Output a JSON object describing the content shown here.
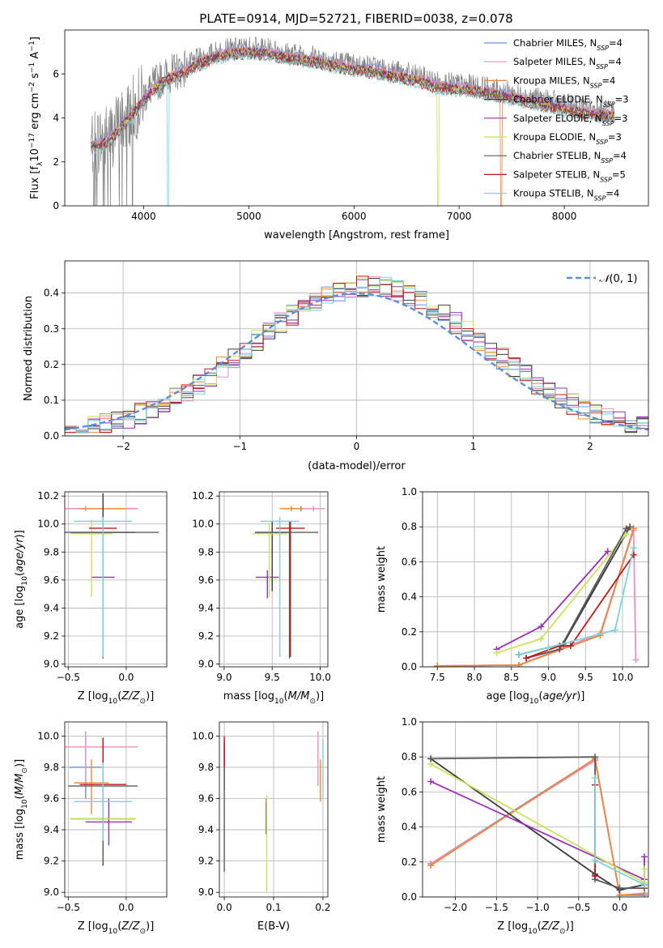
{
  "figure": {
    "title": "PLATE=0914, MJD=52721, FIBERID=0038, z=0.078"
  },
  "colors": {
    "Chabrier MILES": "#6b8fd6",
    "Salpeter MILES": "#e88fc4",
    "Kroupa MILES": "#f0863a",
    "Chabrier ELODIE": "#3a3a3a",
    "Salpeter ELODIE": "#9b2fb3",
    "Kroupa ELODIE": "#c8e25a",
    "Chabrier STELIB": "#5a5a5a",
    "Salpeter STELIB": "#c01818",
    "Kroupa STELIB": "#7fd3d8",
    "gauss": "#5b8fd6",
    "data": "#808080"
  },
  "chart_data": [
    {
      "id": "spectrum",
      "type": "line",
      "xlabel": "wavelength [Angstrom, rest frame]",
      "ylabel": "Flux [f_λ10^-17 erg cm^-2 s^-1 A^-1]",
      "xlim": [
        3250,
        8800
      ],
      "ylim": [
        0,
        8
      ],
      "xticks": [
        4000,
        5000,
        6000,
        7000,
        8000
      ],
      "yticks": [
        0,
        2,
        4,
        6
      ],
      "grid": false,
      "legend_position": "upper right",
      "legend": [
        {
          "model": "Chabrier MILES",
          "nssp": "4"
        },
        {
          "model": "Salpeter MILES",
          "nssp": "4"
        },
        {
          "model": "Kroupa MILES",
          "nssp": "4"
        },
        {
          "model": "Chabrier ELODIE",
          "nssp": "3"
        },
        {
          "model": "Salpeter ELODIE",
          "nssp": "3"
        },
        {
          "model": "Kroupa ELODIE",
          "nssp": "3"
        },
        {
          "model": "Chabrier STELIB",
          "nssp": "4"
        },
        {
          "model": "Salpeter STELIB",
          "nssp": "5"
        },
        {
          "model": "Kroupa STELIB",
          "nssp": "4"
        }
      ],
      "continuum": {
        "wavelength": [
          3500,
          3600,
          3700,
          3800,
          3900,
          4000,
          4100,
          4200,
          4300,
          4400,
          4500,
          4600,
          4700,
          4800,
          4900,
          5000,
          5200,
          5400,
          5600,
          5800,
          6000,
          6200,
          6400,
          6600,
          6800,
          7000,
          7200,
          7400,
          7600,
          7800,
          8000,
          8200,
          8400
        ],
        "flux": [
          2.9,
          3.0,
          3.3,
          3.9,
          4.4,
          5.0,
          5.5,
          5.9,
          6.1,
          6.3,
          6.6,
          6.8,
          7.0,
          7.1,
          7.15,
          7.2,
          7.1,
          6.9,
          6.8,
          6.6,
          6.4,
          6.3,
          6.1,
          5.9,
          5.6,
          5.5,
          5.4,
          5.2,
          5.0,
          4.8,
          4.6,
          4.4,
          4.3
        ]
      }
    },
    {
      "id": "residuals",
      "type": "step",
      "xlabel": "(data-model)/error",
      "ylabel": "Normed distribution",
      "xlim": [
        -2.5,
        2.5
      ],
      "ylim": [
        0,
        0.49
      ],
      "xticks": [
        -2,
        -1,
        0,
        1,
        2
      ],
      "yticks": [
        0.0,
        0.1,
        0.2,
        0.3,
        0.4
      ],
      "grid": true,
      "legend": "N(0,1)",
      "legend_position": "upper right",
      "bin_width": 0.1
    },
    {
      "id": "age-vs-Z",
      "type": "errorbar",
      "xlabel": "Z [log10(Z/Z_sun)]",
      "ylabel": "age  [log10(age/yr)]",
      "xlim": [
        -0.53,
        0.35
      ],
      "ylim": [
        8.98,
        10.23
      ],
      "xticks": [
        -0.5,
        0.0
      ],
      "yticks": [
        9.0,
        9.2,
        9.4,
        9.6,
        9.8,
        10.0,
        10.2
      ],
      "grid": true,
      "points": [
        {
          "model": "Chabrier MILES",
          "x": -0.2,
          "xerr": 0.3,
          "y": 10.11,
          "yerr": [
            0.02,
            0.02
          ]
        },
        {
          "model": "Salpeter MILES",
          "x": -0.35,
          "xerr": 0.45,
          "y": 10.11,
          "yerr": [
            0.02,
            0.02
          ]
        },
        {
          "model": "Kroupa MILES",
          "x": -0.2,
          "xerr": 0.2,
          "y": 10.11,
          "yerr": [
            0.02,
            0.02
          ]
        },
        {
          "model": "Chabrier ELODIE",
          "x": -0.2,
          "xerr": 0.28,
          "y": 9.94,
          "yerr": [
            0.88,
            0.28
          ]
        },
        {
          "model": "Salpeter ELODIE",
          "x": -0.2,
          "xerr": 0.1,
          "y": 9.62,
          "yerr": [
            0.08,
            0.08
          ]
        },
        {
          "model": "Kroupa ELODIE",
          "x": -0.3,
          "xerr": 0.18,
          "y": 9.93,
          "yerr": [
            0.45,
            0.1
          ]
        },
        {
          "model": "Chabrier STELIB",
          "x": -0.2,
          "xerr": 0.48,
          "y": 9.94,
          "yerr": [
            0.9,
            0.08
          ]
        },
        {
          "model": "Salpeter STELIB",
          "x": -0.2,
          "xerr": 0.12,
          "y": 9.97,
          "yerr": [
            0.05,
            0.05
          ]
        },
        {
          "model": "Kroupa STELIB",
          "x": -0.2,
          "xerr": 0.25,
          "y": 10.02,
          "yerr": [
            0.97,
            0.03
          ]
        }
      ]
    },
    {
      "id": "age-vs-mass",
      "type": "errorbar",
      "xlabel": "mass [log10(M/M_sun)]",
      "ylabel": "",
      "xlim": [
        8.95,
        10.08
      ],
      "ylim": [
        8.98,
        10.23
      ],
      "xticks": [
        9.0,
        9.5,
        10.0
      ],
      "yticks": [
        9.0,
        9.2,
        9.4,
        9.6,
        9.8,
        10.0,
        10.2
      ],
      "grid": true,
      "points": [
        {
          "model": "Chabrier MILES",
          "x": 9.8,
          "xerr": 0.15,
          "y": 10.11,
          "yerr": [
            0.02,
            0.02
          ]
        },
        {
          "model": "Salpeter MILES",
          "x": 9.93,
          "xerr": 0.12,
          "y": 10.11,
          "yerr": [
            0.02,
            0.02
          ]
        },
        {
          "model": "Kroupa MILES",
          "x": 9.7,
          "xerr": 0.12,
          "y": 10.11,
          "yerr": [
            0.02,
            0.02
          ]
        },
        {
          "model": "Chabrier ELODIE",
          "x": 9.5,
          "xerr": 0.18,
          "y": 9.94,
          "yerr": [
            0.42,
            0.08
          ]
        },
        {
          "model": "Salpeter ELODIE",
          "x": 9.45,
          "xerr": 0.12,
          "y": 9.62,
          "yerr": [
            0.15,
            0.05
          ]
        },
        {
          "model": "Kroupa ELODIE",
          "x": 9.47,
          "xerr": 0.18,
          "y": 9.93,
          "yerr": [
            0.45,
            0.08
          ]
        },
        {
          "model": "Chabrier STELIB",
          "x": 9.68,
          "xerr": 0.3,
          "y": 9.94,
          "yerr": [
            0.9,
            0.08
          ]
        },
        {
          "model": "Salpeter STELIB",
          "x": 9.69,
          "xerr": 0.15,
          "y": 9.97,
          "yerr": [
            0.92,
            0.05
          ]
        },
        {
          "model": "Kroupa STELIB",
          "x": 9.58,
          "xerr": 0.2,
          "y": 10.02,
          "yerr": [
            0.97,
            0.03
          ]
        }
      ]
    },
    {
      "id": "mass-weight-vs-age",
      "type": "line",
      "xlabel": "age  [log10(age/yr)]",
      "ylabel": "mass weight",
      "xlim": [
        7.3,
        10.35
      ],
      "ylim": [
        0,
        1
      ],
      "xticks": [
        7.5,
        8.0,
        8.5,
        9.0,
        9.5,
        10.0
      ],
      "yticks": [
        0.0,
        0.2,
        0.4,
        0.6,
        0.8,
        1.0
      ],
      "grid": true,
      "series": [
        {
          "model": "Chabrier MILES",
          "x": [
            7.5,
            8.6,
            9.7,
            10.15
          ],
          "y": [
            0.005,
            0.01,
            0.19,
            0.79
          ]
        },
        {
          "model": "Salpeter MILES",
          "x": [
            7.5,
            8.6,
            9.7,
            10.15,
            10.18
          ],
          "y": [
            0.005,
            0.01,
            0.19,
            0.78,
            0.04
          ]
        },
        {
          "model": "Kroupa MILES",
          "x": [
            7.5,
            8.6,
            9.7,
            10.15
          ],
          "y": [
            0.005,
            0.01,
            0.18,
            0.79
          ]
        },
        {
          "model": "Chabrier ELODIE",
          "x": [
            8.6,
            9.2,
            10.1
          ],
          "y": [
            0.07,
            0.13,
            0.8
          ]
        },
        {
          "model": "Salpeter ELODIE",
          "x": [
            8.3,
            8.9,
            9.8
          ],
          "y": [
            0.1,
            0.23,
            0.66
          ]
        },
        {
          "model": "Kroupa ELODIE",
          "x": [
            8.3,
            8.9,
            10.05
          ],
          "y": [
            0.08,
            0.16,
            0.76
          ]
        },
        {
          "model": "Chabrier STELIB",
          "x": [
            8.7,
            9.15,
            10.05,
            10.1
          ],
          "y": [
            0.05,
            0.1,
            0.79,
            0.8
          ]
        },
        {
          "model": "Salpeter STELIB",
          "x": [
            8.7,
            9.15,
            9.3,
            10.15
          ],
          "y": [
            0.05,
            0.12,
            0.12,
            0.64
          ]
        },
        {
          "model": "Kroupa STELIB",
          "x": [
            8.6,
            9.0,
            9.9,
            10.15
          ],
          "y": [
            0.07,
            0.11,
            0.21,
            0.68
          ]
        }
      ]
    },
    {
      "id": "mass-vs-Z",
      "type": "errorbar",
      "xlabel": "Z [log10(Z/Z_sun)]",
      "ylabel": "mass [log10(M/M_sun)]",
      "xlim": [
        -0.53,
        0.35
      ],
      "ylim": [
        8.97,
        10.09
      ],
      "xticks": [
        -0.5,
        0.0
      ],
      "yticks": [
        9.0,
        9.2,
        9.4,
        9.6,
        9.8,
        10.0
      ],
      "grid": true,
      "points": [
        {
          "model": "Chabrier MILES",
          "x": -0.35,
          "xerr": 0.14,
          "y": 9.8,
          "yerr": [
            0.2,
            0.2
          ]
        },
        {
          "model": "Salpeter MILES",
          "x": -0.35,
          "xerr": 0.45,
          "y": 9.93,
          "yerr": [
            0.25,
            0.1
          ]
        },
        {
          "model": "Kroupa MILES",
          "x": -0.3,
          "xerr": 0.15,
          "y": 9.7,
          "yerr": [
            0.2,
            0.15
          ]
        },
        {
          "model": "Chabrier ELODIE",
          "x": -0.2,
          "xerr": 0.28,
          "y": 9.47,
          "yerr": [
            0.3,
            0.2
          ]
        },
        {
          "model": "Salpeter ELODIE",
          "x": -0.15,
          "xerr": 0.2,
          "y": 9.45,
          "yerr": [
            0.15,
            0.15
          ]
        },
        {
          "model": "Kroupa ELODIE",
          "x": -0.2,
          "xerr": 0.28,
          "y": 9.47,
          "yerr": [
            0.27,
            0.3
          ]
        },
        {
          "model": "Chabrier STELIB",
          "x": -0.2,
          "xerr": 0.3,
          "y": 9.68,
          "yerr": [
            0.5,
            0.3
          ]
        },
        {
          "model": "Salpeter STELIB",
          "x": -0.2,
          "xerr": 0.2,
          "y": 9.69,
          "yerr": [
            0.3,
            0.3
          ]
        },
        {
          "model": "Kroupa STELIB",
          "x": -0.2,
          "xerr": 0.25,
          "y": 9.58,
          "yerr": [
            0.25,
            0.25
          ]
        }
      ]
    },
    {
      "id": "mass-vs-ebv",
      "type": "errorbar",
      "xlabel": "E(B-V)",
      "ylabel": "",
      "xlim": [
        -0.01,
        0.21
      ],
      "ylim": [
        8.97,
        10.09
      ],
      "xticks": [
        0.0,
        0.1,
        0.2
      ],
      "yticks": [
        9.0,
        9.2,
        9.4,
        9.6,
        9.8,
        10.0
      ],
      "grid": true,
      "points": [
        {
          "model": "Chabrier MILES",
          "x": 0.0,
          "y": 9.8,
          "yerr": [
            0.15,
            0.15
          ]
        },
        {
          "model": "Salpeter MILES",
          "x": 0.19,
          "y": 9.93,
          "yerr": [
            0.25,
            0.1
          ]
        },
        {
          "model": "Kroupa MILES",
          "x": 0.195,
          "y": 9.7,
          "yerr": [
            0.12,
            0.15
          ]
        },
        {
          "model": "Chabrier ELODIE",
          "x": 0.085,
          "y": 9.47,
          "yerr": [
            0.1,
            0.1
          ]
        },
        {
          "model": "Salpeter ELODIE",
          "x": 0.085,
          "y": 9.5,
          "yerr": [
            0.05,
            0.1
          ]
        },
        {
          "model": "Kroupa ELODIE",
          "x": 0.086,
          "y": 9.47,
          "yerr": [
            0.47,
            0.15
          ]
        },
        {
          "model": "Chabrier STELIB",
          "x": 0.0,
          "y": 9.68,
          "yerr": [
            0.55,
            0.3
          ]
        },
        {
          "model": "Salpeter STELIB",
          "x": 0.0,
          "y": 9.9,
          "yerr": [
            0.1,
            0.1
          ]
        },
        {
          "model": "Kroupa STELIB",
          "x": 0.2,
          "y": 9.8,
          "yerr": [
            0.2,
            0.18
          ]
        }
      ]
    },
    {
      "id": "mass-weight-vs-Z",
      "type": "line",
      "xlabel": "Z [log10(Z/Z_sun)]",
      "ylabel": "mass weight",
      "xlim": [
        -2.4,
        0.35
      ],
      "ylim": [
        0,
        1
      ],
      "xticks": [
        -2.0,
        -1.5,
        -1.0,
        -0.5,
        0.0
      ],
      "yticks": [
        0.0,
        0.2,
        0.4,
        0.6,
        0.8,
        1.0
      ],
      "grid": true,
      "series": [
        {
          "model": "Chabrier MILES",
          "x": [
            -2.3,
            -0.3,
            0.0,
            0.3
          ],
          "y": [
            0.19,
            0.79,
            0.01,
            0.01
          ]
        },
        {
          "model": "Salpeter MILES",
          "x": [
            -2.3,
            -0.3,
            0.0,
            0.3
          ],
          "y": [
            0.19,
            0.78,
            0.01,
            0.02
          ]
        },
        {
          "model": "Kroupa MILES",
          "x": [
            -2.3,
            -0.3,
            0.0,
            0.3
          ],
          "y": [
            0.18,
            0.79,
            0.01,
            0.02
          ]
        },
        {
          "model": "Chabrier ELODIE",
          "x": [
            -2.3,
            -0.3,
            0.0,
            0.3
          ],
          "y": [
            0.79,
            0.13,
            0.04,
            0.07
          ]
        },
        {
          "model": "Salpeter ELODIE",
          "x": [
            -2.3,
            0.3,
            0.3
          ],
          "y": [
            0.66,
            0.1,
            0.23
          ]
        },
        {
          "model": "Kroupa ELODIE",
          "x": [
            -2.3,
            0.3,
            0.3
          ],
          "y": [
            0.76,
            0.08,
            0.16
          ]
        },
        {
          "model": "Chabrier STELIB",
          "x": [
            -2.3,
            -0.3,
            -0.3,
            0.0,
            0.3
          ],
          "y": [
            0.79,
            0.8,
            0.1,
            0.05,
            0.05
          ]
        },
        {
          "model": "Salpeter STELIB",
          "x": [
            -0.3,
            -0.3,
            -0.3
          ],
          "y": [
            0.64,
            0.12,
            0.12
          ]
        },
        {
          "model": "Kroupa STELIB",
          "x": [
            -0.3,
            -0.3,
            0.3
          ],
          "y": [
            0.68,
            0.21,
            0.07
          ]
        }
      ]
    }
  ]
}
